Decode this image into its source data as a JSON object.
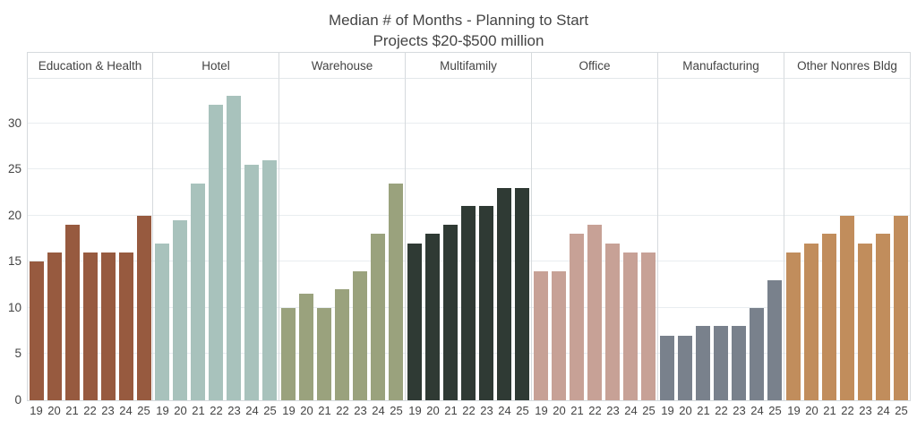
{
  "chart_data": {
    "type": "bar",
    "title": "Median # of Months - Planning to Start",
    "subtitle": "Projects $20-$500 million",
    "categories": [
      "19",
      "20",
      "21",
      "22",
      "23",
      "24",
      "25"
    ],
    "yticks": [
      0,
      5,
      10,
      15,
      20,
      25,
      30
    ],
    "ylim": [
      0,
      34.8
    ],
    "grid": true,
    "legend_position": "none",
    "series": [
      {
        "name": "Education & Health",
        "color": "#975a3f",
        "values": [
          15,
          16,
          19,
          16,
          16,
          16,
          20
        ]
      },
      {
        "name": "Hotel",
        "color": "#a8c2bc",
        "values": [
          17,
          19.5,
          23.5,
          32,
          33,
          25.5,
          26
        ]
      },
      {
        "name": "Warehouse",
        "color": "#9aa27d",
        "values": [
          10,
          11.5,
          10,
          12,
          14,
          18,
          23.5
        ]
      },
      {
        "name": "Multifamily",
        "color": "#2f3a34",
        "values": [
          17,
          18,
          19,
          21,
          21,
          23,
          23
        ]
      },
      {
        "name": "Office",
        "color": "#c7a196",
        "values": [
          14,
          14,
          18,
          19,
          17,
          16,
          16
        ]
      },
      {
        "name": "Manufacturing",
        "color": "#79818c",
        "values": [
          7,
          7,
          8,
          8,
          8,
          10,
          13
        ]
      },
      {
        "name": "Other Nonres Bldg",
        "color": "#c18d5c",
        "values": [
          16,
          17,
          18,
          20,
          17,
          18,
          20
        ]
      }
    ]
  }
}
